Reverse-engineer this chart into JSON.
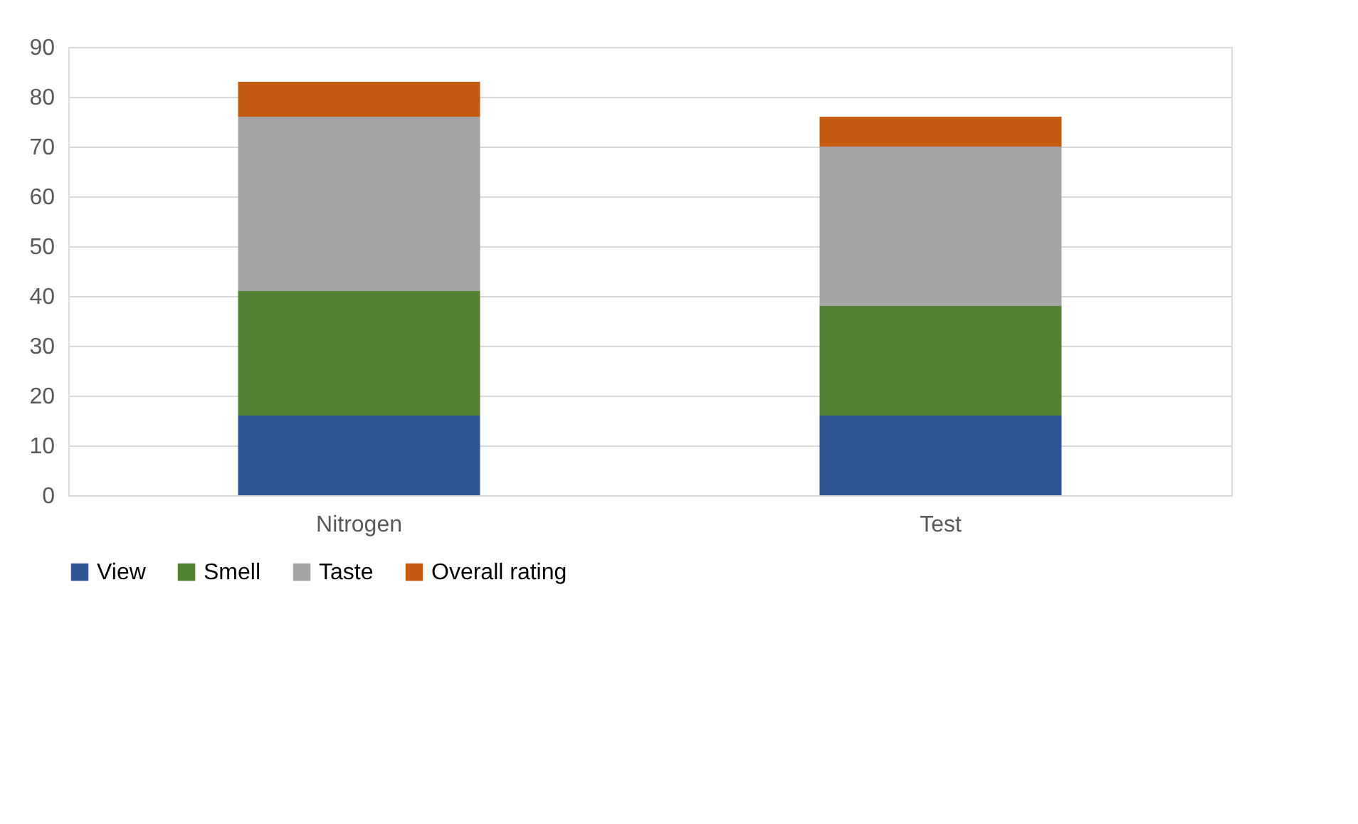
{
  "chart_data": {
    "type": "bar",
    "stacked": true,
    "categories": [
      "Nitrogen",
      "Test"
    ],
    "series": [
      {
        "name": "View",
        "color": "#2f5597",
        "values": [
          16,
          16
        ]
      },
      {
        "name": "Smell",
        "color": "#548235",
        "values": [
          25,
          22
        ]
      },
      {
        "name": "Taste",
        "color": "#a5a5a5",
        "values": [
          35,
          32
        ]
      },
      {
        "name": "Overall rating",
        "color": "#c55a11",
        "values": [
          7,
          6
        ]
      }
    ],
    "ylim": [
      0,
      90
    ],
    "yticks": [
      0,
      10,
      20,
      30,
      40,
      50,
      60,
      70,
      80,
      90
    ],
    "grid": "y",
    "legend": "bottom"
  }
}
